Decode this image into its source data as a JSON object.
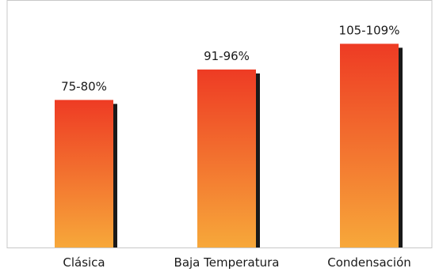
{
  "chart_data": {
    "type": "bar",
    "categories": [
      "Clásica",
      "Baja Temperatura",
      "Condensación"
    ],
    "values": [
      77.5,
      93.5,
      107
    ],
    "data_labels": [
      "75-80%",
      "91-96%",
      "105-109%"
    ],
    "title": "",
    "xlabel": "",
    "ylabel": "",
    "ylim": [
      0,
      130
    ],
    "grid": false,
    "legend": "none",
    "colors": {
      "bar_top": "#ee3b24",
      "bar_bottom": "#f7a83a",
      "shadow": "#1a1a1a",
      "frame": "#c8c8c8"
    }
  }
}
